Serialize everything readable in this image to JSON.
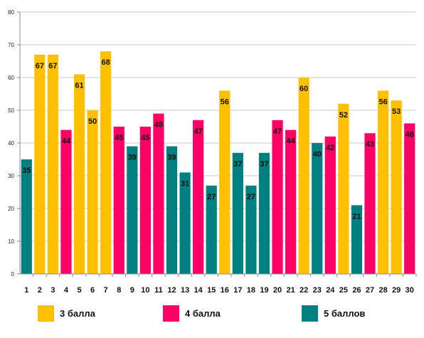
{
  "chart_data": {
    "type": "bar",
    "categories": [
      "1",
      "2",
      "3",
      "4",
      "5",
      "6",
      "7",
      "8",
      "9",
      "10",
      "11",
      "12",
      "13",
      "14",
      "15",
      "16",
      "17",
      "18",
      "19",
      "20",
      "21",
      "22",
      "23",
      "24",
      "25",
      "26",
      "27",
      "28",
      "29",
      "30"
    ],
    "values": [
      35,
      67,
      67,
      44,
      61,
      50,
      68,
      45,
      39,
      45,
      49,
      39,
      31,
      47,
      27,
      56,
      37,
      27,
      37,
      47,
      44,
      60,
      40,
      42,
      52,
      21,
      43,
      56,
      53,
      46
    ],
    "groups": [
      "5",
      "3",
      "3",
      "4",
      "3",
      "3",
      "3",
      "4",
      "5",
      "4",
      "4",
      "5",
      "5",
      "4",
      "5",
      "3",
      "5",
      "5",
      "5",
      "4",
      "4",
      "3",
      "5",
      "4",
      "3",
      "5",
      "4",
      "3",
      "3",
      "4"
    ],
    "legend": [
      {
        "key": "3",
        "name": "3 балла",
        "color": "#FFC000"
      },
      {
        "key": "4",
        "name": "4 балла",
        "color": "#FF0066"
      },
      {
        "key": "5",
        "name": "5 баллов",
        "color": "#008080"
      }
    ],
    "ylim": [
      0,
      80
    ],
    "yticks": [
      0,
      10,
      20,
      30,
      40,
      50,
      60,
      70,
      80
    ],
    "grid": true,
    "legend_position": "bottom"
  }
}
